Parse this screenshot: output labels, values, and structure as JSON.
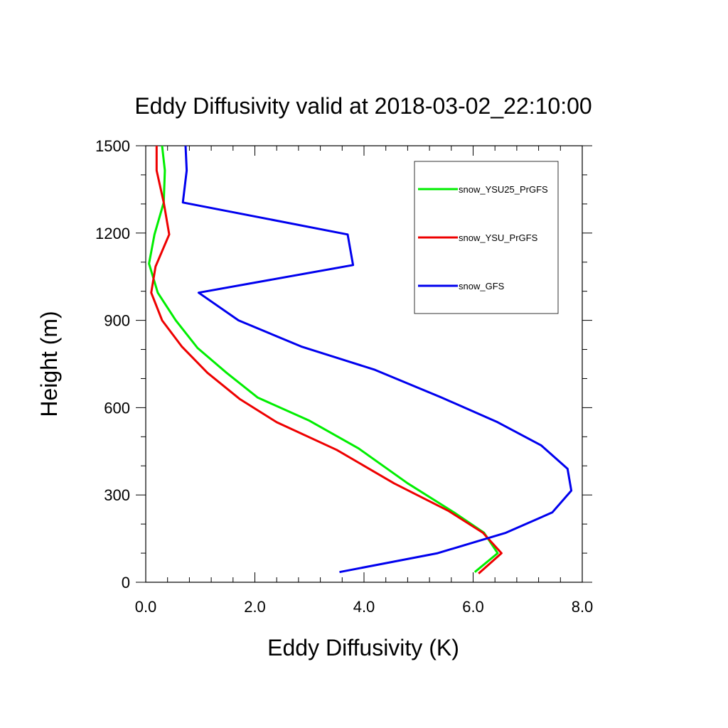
{
  "chart_data": {
    "type": "line",
    "title": "Eddy Diffusivity valid at 2018-03-02_22:10:00",
    "xlabel": "Eddy Diffusivity (K)",
    "ylabel": "Height (m)",
    "xlim": [
      0,
      8
    ],
    "ylim": [
      0,
      1500
    ],
    "x_ticks": [
      0,
      2,
      4,
      6,
      8
    ],
    "x_tick_labels": [
      "0.0",
      "2.0",
      "4.0",
      "6.0",
      "8.0"
    ],
    "y_ticks": [
      0,
      300,
      600,
      900,
      1200,
      1500
    ],
    "y_tick_labels": [
      "0",
      "300",
      "600",
      "900",
      "1200",
      "1500"
    ],
    "grid": false,
    "legend_position": "top-right",
    "series": [
      {
        "name": "snow_YSU25_PrGFS",
        "color": "#00ee00",
        "points": [
          [
            6.03,
            35
          ],
          [
            6.45,
            100
          ],
          [
            6.2,
            170
          ],
          [
            5.65,
            240
          ],
          [
            4.8,
            340
          ],
          [
            3.9,
            460
          ],
          [
            3.0,
            555
          ],
          [
            2.05,
            635
          ],
          [
            1.48,
            720
          ],
          [
            0.95,
            805
          ],
          [
            0.55,
            900
          ],
          [
            0.22,
            995
          ],
          [
            0.06,
            1095
          ],
          [
            0.16,
            1195
          ],
          [
            0.33,
            1305
          ],
          [
            0.35,
            1415
          ],
          [
            0.3,
            1500
          ]
        ]
      },
      {
        "name": "snow_YSU_PrGFS",
        "color": "#ee0000",
        "points": [
          [
            6.1,
            30
          ],
          [
            6.52,
            100
          ],
          [
            6.18,
            170
          ],
          [
            5.55,
            245
          ],
          [
            4.55,
            340
          ],
          [
            3.5,
            455
          ],
          [
            2.4,
            550
          ],
          [
            1.72,
            630
          ],
          [
            1.13,
            720
          ],
          [
            0.66,
            810
          ],
          [
            0.3,
            900
          ],
          [
            0.1,
            995
          ],
          [
            0.18,
            1085
          ],
          [
            0.43,
            1195
          ],
          [
            0.33,
            1305
          ],
          [
            0.2,
            1415
          ],
          [
            0.2,
            1500
          ]
        ]
      },
      {
        "name": "snow_GFS",
        "color": "#0000ee",
        "points": [
          [
            3.55,
            35
          ],
          [
            5.35,
            100
          ],
          [
            6.6,
            170
          ],
          [
            7.45,
            240
          ],
          [
            7.8,
            315
          ],
          [
            7.73,
            390
          ],
          [
            7.25,
            470
          ],
          [
            6.45,
            550
          ],
          [
            5.42,
            635
          ],
          [
            4.2,
            730
          ],
          [
            2.85,
            810
          ],
          [
            1.7,
            900
          ],
          [
            0.97,
            995
          ],
          [
            3.8,
            1090
          ],
          [
            3.7,
            1195
          ],
          [
            0.68,
            1305
          ],
          [
            0.75,
            1415
          ],
          [
            0.73,
            1500
          ]
        ]
      }
    ]
  }
}
